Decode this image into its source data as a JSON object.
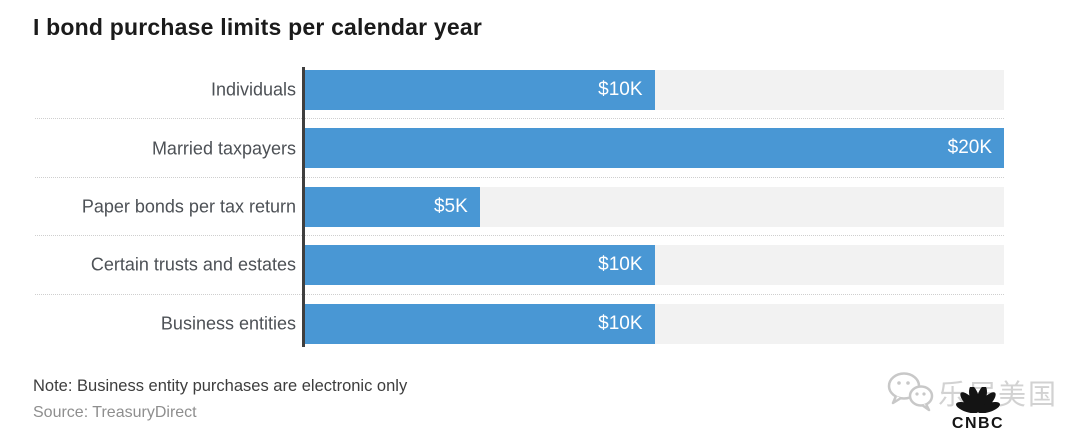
{
  "title": "I bond purchase limits per calendar year",
  "note": "Note: Business entity purchases are electronic only",
  "source": "Source: TreasuryDirect",
  "colors": {
    "bar_blue": "#4997d4",
    "track_gray": "#f2f2f2",
    "axis_dark": "#3f3f3f",
    "title_text": "#1b1b1b",
    "label_text": "#4d5156",
    "note_text": "#3d3d3d",
    "source_text": "#8e8e8e",
    "separator_dotted": "#cfcfcf",
    "watermark_gray": "#d2d2d2",
    "cnbc_dark": "#141414",
    "value_text": "#ffffff"
  },
  "chart_data": {
    "type": "bar",
    "orientation": "horizontal",
    "title": "I bond purchase limits per calendar year",
    "categories": [
      "Individuals",
      "Married taxpayers",
      "Paper bonds per tax return",
      "Certain trusts and estates",
      "Business entities"
    ],
    "values": [
      10000,
      20000,
      5000,
      10000,
      10000
    ],
    "value_labels": [
      "$10K",
      "$20K",
      "$5K",
      "$10K",
      "$10K"
    ],
    "xlim": [
      0,
      20000
    ],
    "grid": false,
    "legend": "none",
    "value_label_position": "inside-end",
    "rows": [
      {
        "label": "Individuals",
        "value": 10000,
        "display": "$10K",
        "percent": 50
      },
      {
        "label": "Married taxpayers",
        "value": 20000,
        "display": "$20K",
        "percent": 100
      },
      {
        "label": "Paper bonds per tax return",
        "value": 5000,
        "display": "$5K",
        "percent": 25
      },
      {
        "label": "Certain trusts and estates",
        "value": 10000,
        "display": "$10K",
        "percent": 50
      },
      {
        "label": "Business entities",
        "value": 10000,
        "display": "$10K",
        "percent": 50
      }
    ]
  },
  "watermark": {
    "icons": [
      "wechat-icon",
      "cnbc-peacock-icon"
    ],
    "text": "乐居美国",
    "brand": "CNBC"
  }
}
